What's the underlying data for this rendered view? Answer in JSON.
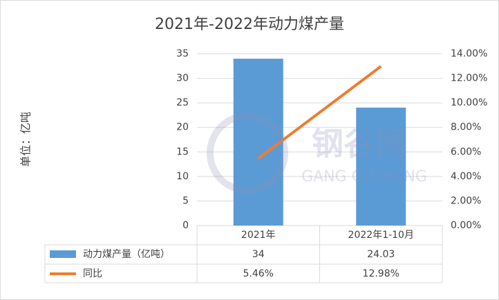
{
  "chart_data": {
    "type": "bar",
    "title": "2021年-2022年动力煤产量",
    "y_label": "单位：亿吨",
    "categories": [
      "2021年",
      "2022年1-10月"
    ],
    "series": [
      {
        "name": "动力煤产量（亿吨）",
        "color": "#5b9bd5",
        "values": [
          34,
          24.03
        ]
      },
      {
        "name": "同比",
        "type": "line",
        "axis": "y2",
        "color": "#ed7d31",
        "values": [
          5.46,
          12.98
        ],
        "value_labels": [
          "5.46%",
          "12.98%"
        ]
      }
    ],
    "ylim": [
      0,
      35
    ],
    "yticks": [
      0,
      5,
      10,
      15,
      20,
      25,
      30,
      35
    ],
    "y2lim": [
      0,
      14
    ],
    "y2ticks": [
      {
        "value": 0,
        "label": "0.00%"
      },
      {
        "value": 2,
        "label": "2.00%"
      },
      {
        "value": 4,
        "label": "4.00%"
      },
      {
        "value": 6,
        "label": "6.00%"
      },
      {
        "value": 8,
        "label": "8.00%"
      },
      {
        "value": 10,
        "label": "10.00%"
      },
      {
        "value": 12,
        "label": "12.00%"
      },
      {
        "value": 14,
        "label": "14.00%"
      }
    ],
    "grid": true,
    "watermark": {
      "text": "钢谷网",
      "subtext": "GANG GU WANG"
    }
  }
}
